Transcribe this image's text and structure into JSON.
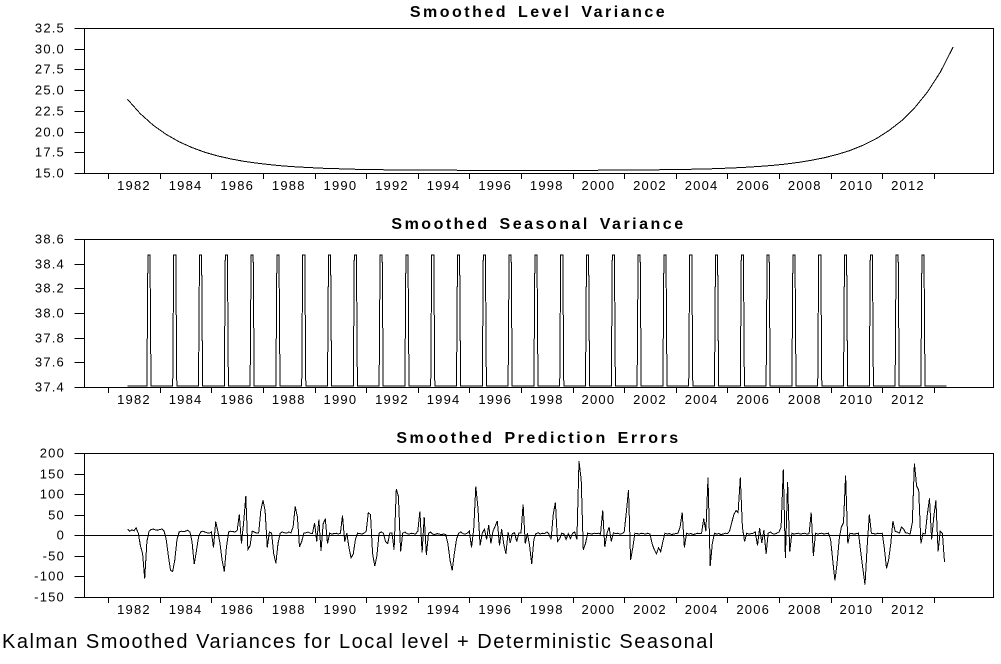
{
  "figure": {
    "caption": "Kalman Smoothed Variances for Local level + Deterministic Seasonal",
    "background_color": "#ffffff",
    "line_color": "#000000",
    "text_color": "#000000"
  },
  "axis": {
    "x_tick_years": [
      1981,
      1983,
      1985,
      1987,
      1989,
      1991,
      1993,
      1995,
      1997,
      1999,
      2001,
      2003,
      2005,
      2007,
      2009,
      2011,
      2013
    ],
    "x_label_years": [
      1982,
      1984,
      1986,
      1988,
      1990,
      1992,
      1994,
      1996,
      1998,
      2000,
      2002,
      2004,
      2006,
      2008,
      2010,
      2012
    ],
    "x_labels": [
      "1982",
      "1984",
      "1986",
      "1988",
      "1990",
      "1992",
      "1994",
      "1996",
      "1998",
      "2000",
      "2002",
      "2004",
      "2006",
      "2008",
      "2010",
      "2012"
    ]
  },
  "chart_data": [
    {
      "type": "line",
      "title": "Smoothed Level Variance",
      "ylim": [
        15.0,
        32.5
      ],
      "ytick_values": [
        32.5,
        30.0,
        27.5,
        25.0,
        22.5,
        20.0,
        17.5,
        15.0
      ],
      "ytick_labels": [
        "32.5",
        "30.0",
        "27.5",
        "25.0",
        "22.5",
        "20.0",
        "17.5",
        "15.0"
      ],
      "grid": false,
      "legend": "none",
      "x_start": 1981.75,
      "x_step": 0.5,
      "values": [
        23.9,
        22.15,
        20.76,
        19.65,
        18.76,
        18.06,
        17.5,
        17.05,
        16.7,
        16.41,
        16.19,
        16.01,
        15.86,
        15.75,
        15.66,
        15.58,
        15.53,
        15.48,
        15.44,
        15.42,
        15.39,
        15.38,
        15.36,
        15.35,
        15.34,
        15.34,
        15.33,
        15.33,
        15.32,
        15.32,
        15.32,
        15.32,
        15.32,
        15.32,
        15.33,
        15.33,
        15.33,
        15.34,
        15.35,
        15.36,
        15.37,
        15.39,
        15.41,
        15.43,
        15.46,
        15.5,
        15.55,
        15.62,
        15.7,
        15.8,
        15.92,
        16.08,
        16.28,
        16.53,
        16.84,
        17.23,
        17.72,
        18.34,
        19.11,
        20.09,
        21.31,
        22.84,
        24.76,
        27.17,
        30.2
      ]
    },
    {
      "type": "line",
      "title": "Smoothed Seasonal Variance",
      "ylim": [
        37.4,
        38.6
      ],
      "ytick_values": [
        38.6,
        38.4,
        38.2,
        38.0,
        37.8,
        37.6,
        37.4
      ],
      "ytick_labels": [
        "38.6",
        "38.4",
        "38.2",
        "38.0",
        "37.8",
        "37.6",
        "37.4"
      ],
      "grid": false,
      "legend": "none",
      "seasonal": {
        "x_start": 1981.75,
        "x_end": 2013.5,
        "baseline": 37.41,
        "peak": 38.47,
        "spike_year_from": 1982,
        "spike_year_to": 2012,
        "peak_start_frac": 0.54,
        "peak_end_frac": 0.62,
        "ramp_frac": 0.04
      }
    },
    {
      "type": "line",
      "title": "Smoothed Prediction Errors",
      "ylim": [
        -150,
        200
      ],
      "ytick_values": [
        200,
        150,
        100,
        50,
        0,
        -50,
        -100,
        -150
      ],
      "ytick_labels": [
        "200",
        "150",
        "100",
        "50",
        "0",
        "-50",
        "-100",
        "-150"
      ],
      "zero_line": true,
      "grid": false,
      "legend": "none",
      "x_start": 1981.75,
      "x_step": 0.0833333,
      "values": [
        15,
        10,
        13,
        11,
        18,
        5,
        -25,
        -45,
        -105,
        -15,
        10,
        14,
        15,
        13,
        12,
        14,
        15,
        10,
        -10,
        -50,
        -85,
        -88,
        -60,
        -10,
        8,
        10,
        9,
        10,
        12,
        8,
        -15,
        -70,
        -40,
        -5,
        8,
        10,
        8,
        6,
        5,
        8,
        -30,
        33,
        10,
        -20,
        -60,
        -88,
        -30,
        8,
        10,
        9,
        8,
        12,
        50,
        -20,
        30,
        95,
        -35,
        -25,
        10,
        8,
        5,
        6,
        60,
        85,
        60,
        -30,
        8,
        5,
        -45,
        -68,
        -20,
        5,
        8,
        6,
        5,
        8,
        6,
        20,
        70,
        45,
        -28,
        -15,
        5,
        6,
        8,
        5,
        4,
        30,
        -15,
        38,
        -38,
        28,
        40,
        -20,
        5,
        3,
        4,
        5,
        3,
        5,
        48,
        -15,
        5,
        -30,
        -55,
        -45,
        -10,
        5,
        4,
        3,
        5,
        10,
        55,
        50,
        -45,
        -75,
        -50,
        5,
        8,
        5,
        -15,
        -20,
        5,
        5,
        -35,
        112,
        95,
        -40,
        5,
        8,
        4,
        3,
        5,
        4,
        3,
        10,
        58,
        -42,
        45,
        -48,
        5,
        8,
        3,
        2,
        4,
        3,
        2,
        3,
        2,
        -20,
        -60,
        -85,
        -45,
        -10,
        5,
        8,
        4,
        3,
        5,
        10,
        -30,
        15,
        118,
        65,
        -25,
        5,
        15,
        -10,
        25,
        -20,
        10,
        22,
        35,
        -25,
        15,
        -22,
        -45,
        8,
        -18,
        4,
        6,
        -15,
        5,
        5,
        75,
        -20,
        5,
        -25,
        -70,
        -10,
        4,
        6,
        3,
        5,
        4,
        8,
        3,
        -10,
        50,
        80,
        -15,
        -8,
        5,
        3,
        -10,
        4,
        -8,
        5,
        8,
        -10,
        180,
        135,
        -35,
        -20,
        5,
        4,
        3,
        5,
        4,
        5,
        3,
        60,
        -28,
        5,
        20,
        -15,
        6,
        4,
        5,
        3,
        4,
        8,
        55,
        110,
        -60,
        -30,
        5,
        4,
        3,
        5,
        4,
        3,
        5,
        3,
        -20,
        -35,
        -45,
        -30,
        -40,
        -15,
        5,
        3,
        4,
        2,
        3,
        4,
        5,
        20,
        55,
        -30,
        5,
        3,
        4,
        2,
        3,
        5,
        4,
        5,
        40,
        10,
        140,
        -75,
        -20,
        5,
        3,
        4,
        2,
        3,
        5,
        4,
        10,
        30,
        50,
        60,
        55,
        140,
        20,
        -15,
        5,
        3,
        4,
        5,
        8,
        -25,
        18,
        -18,
        12,
        -45,
        5,
        8,
        4,
        3,
        5,
        8,
        20,
        160,
        -55,
        130,
        -40,
        5,
        3,
        4,
        5,
        3,
        4,
        5,
        3,
        4,
        55,
        -50,
        5,
        3,
        4,
        5,
        3,
        4,
        5,
        -10,
        -60,
        -110,
        -70,
        -10,
        20,
        30,
        145,
        -20,
        5,
        4,
        3,
        4,
        5,
        -40,
        -80,
        -120,
        -30,
        50,
        5,
        4,
        3,
        5,
        4,
        5,
        -30,
        -80,
        -60,
        -20,
        35,
        10,
        8,
        5,
        20,
        15,
        5,
        5,
        3,
        30,
        175,
        120,
        110,
        -20,
        5,
        3,
        50,
        90,
        -10,
        45,
        85,
        -40,
        10,
        5,
        -65
      ]
    }
  ]
}
